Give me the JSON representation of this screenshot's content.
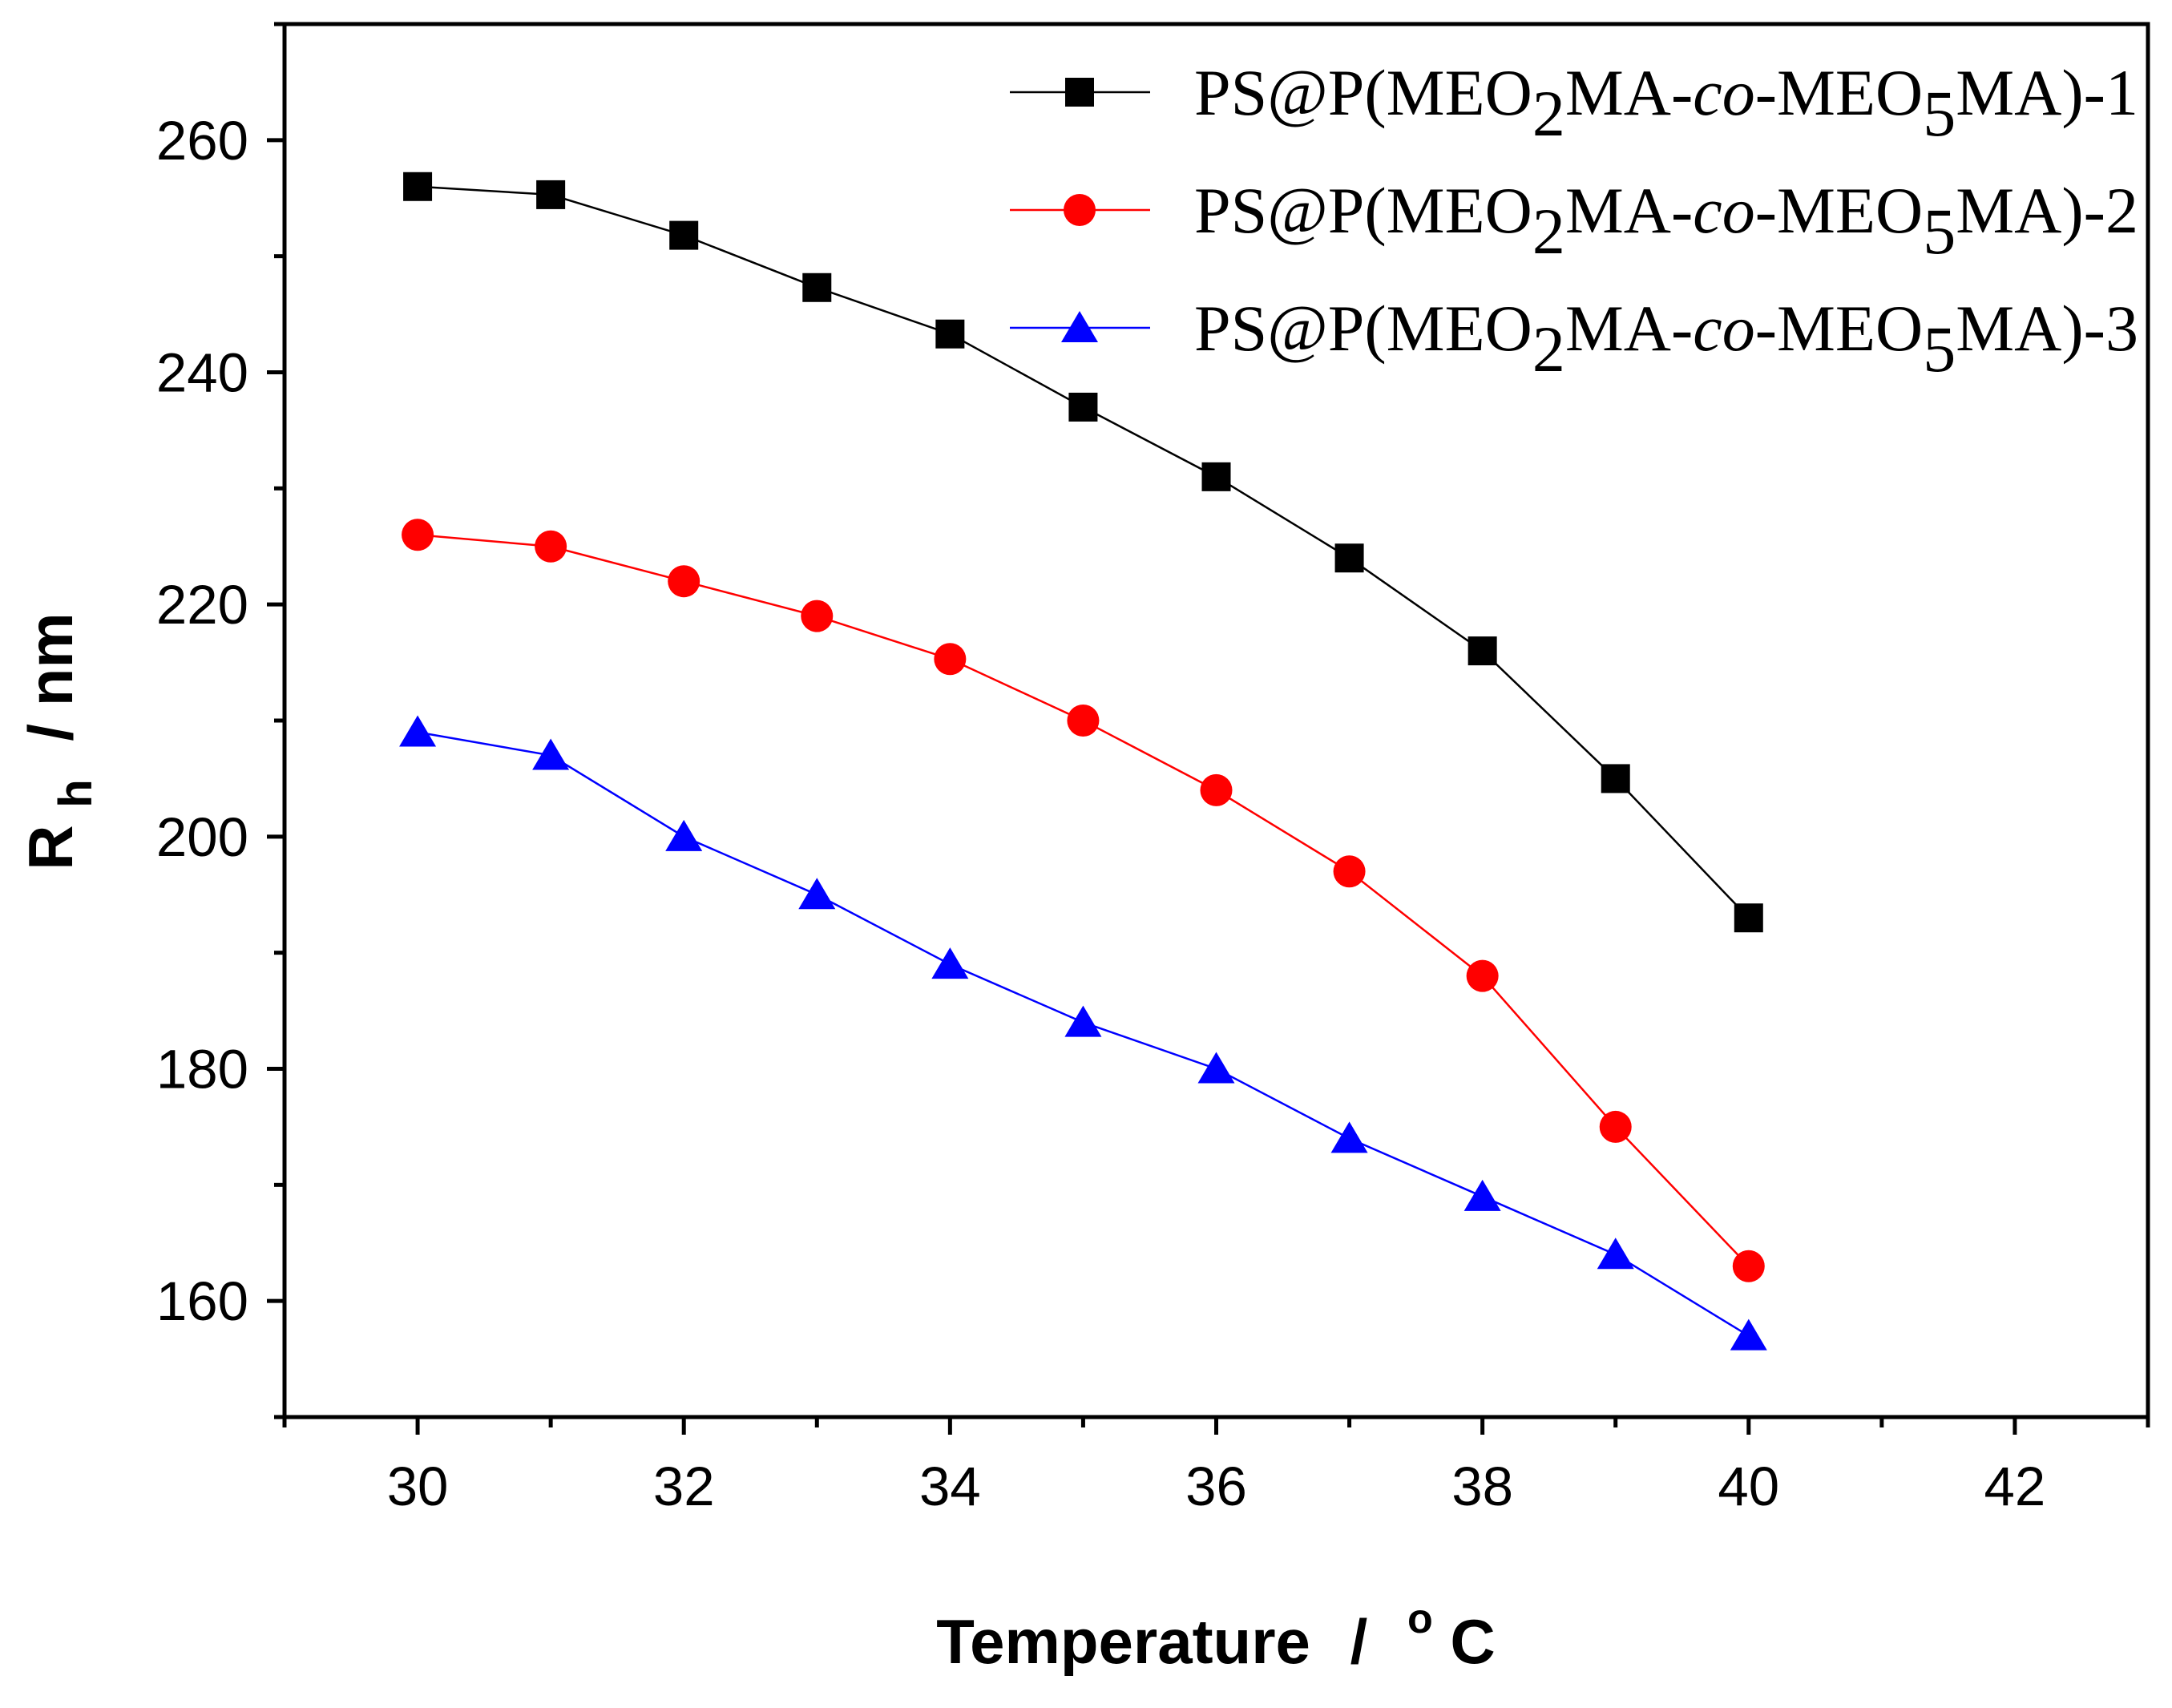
{
  "chart_data": {
    "type": "line",
    "xlabel": "Temperature",
    "xlabel_sep": "/",
    "xunit_superscript": "o",
    "xunit": "C",
    "ylabel_main": "R",
    "ylabel_sub": "h",
    "ylabel_unit": "/ nm",
    "xlim": [
      29,
      43
    ],
    "ylim": [
      150,
      270
    ],
    "xticks": [
      30,
      32,
      34,
      36,
      38,
      40,
      42
    ],
    "yticks": [
      160,
      180,
      200,
      220,
      240,
      260
    ],
    "legend_position": "top-right",
    "x": [
      30,
      31,
      32,
      33,
      34,
      35,
      36,
      37,
      38,
      39,
      40
    ],
    "series": [
      {
        "name": "PS@P(MEO2MA-co-MEO5MA)-1",
        "name_parts": [
          "PS@P(MEO",
          "2",
          "MA-",
          "co",
          "-MEO",
          "5",
          "MA)-1"
        ],
        "color": "#000000",
        "marker": "square",
        "values": [
          256,
          255.3,
          251.8,
          247.3,
          243.3,
          237,
          231,
          224,
          216,
          205,
          193
        ]
      },
      {
        "name": "PS@P(MEO2MA-co-MEO5MA)-2",
        "name_parts": [
          "PS@P(MEO",
          "2",
          "MA-",
          "co",
          "-MEO",
          "5",
          "MA)-2"
        ],
        "color": "#ff0000",
        "marker": "circle",
        "values": [
          226,
          225,
          222,
          219,
          215.3,
          210,
          204,
          197,
          188,
          175,
          163
        ]
      },
      {
        "name": "PS@P(MEO2MA-co-MEO5MA)-3",
        "name_parts": [
          "PS@P(MEO",
          "2",
          "MA-",
          "co",
          "-MEO",
          "5",
          "MA)-3"
        ],
        "color": "#0000ff",
        "marker": "triangle",
        "values": [
          209,
          207,
          200,
          195,
          189,
          184,
          180,
          174,
          169,
          164,
          157
        ]
      }
    ]
  }
}
